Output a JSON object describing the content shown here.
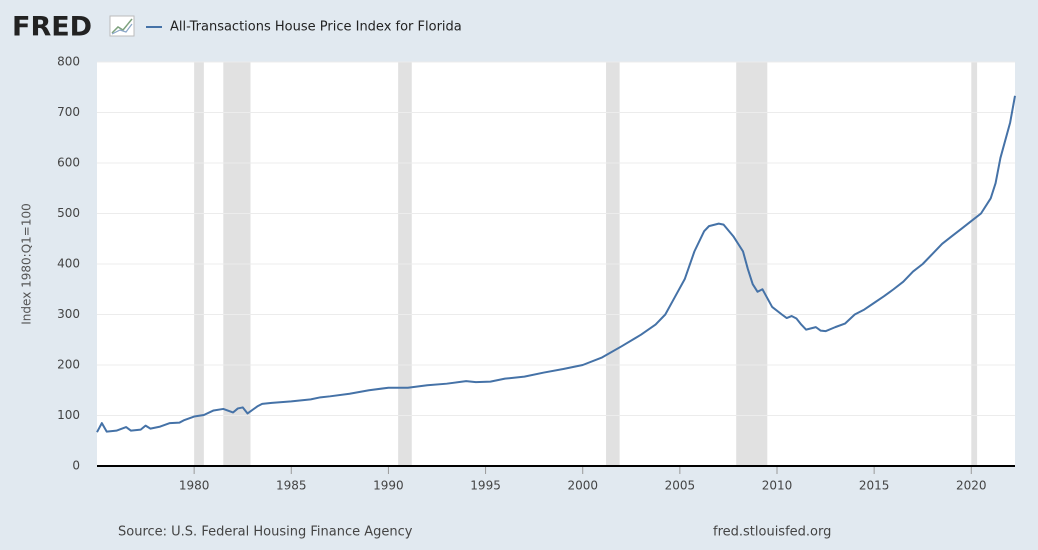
{
  "chart_data": {
    "type": "line",
    "logo": "FRED",
    "y_label": "Index 1980:Q1=100",
    "source": "Source: U.S. Federal Housing Finance Agency",
    "site": "fred.stlouisfed.org",
    "x": [
      1975.0,
      1975.25,
      1975.5,
      1976.0,
      1976.5,
      1976.75,
      1977.25,
      1977.5,
      1977.75,
      1978.25,
      1978.75,
      1979.25,
      1979.5,
      1980.0,
      1980.5,
      1981.0,
      1981.5,
      1982.0,
      1982.25,
      1982.5,
      1982.75,
      1983.25,
      1983.5,
      1984.0,
      1985.0,
      1986.0,
      1986.5,
      1987.0,
      1988.0,
      1989.0,
      1990.0,
      1991.0,
      1992.0,
      1993.0,
      1994.0,
      1994.5,
      1995.25,
      1996.0,
      1997.0,
      1998.0,
      1999.0,
      2000.0,
      2001.0,
      2002.0,
      2003.0,
      2003.75,
      2004.25,
      2004.75,
      2005.25,
      2005.75,
      2006.25,
      2006.5,
      2007.0,
      2007.25,
      2007.75,
      2008.25,
      2008.5,
      2008.75,
      2009.0,
      2009.25,
      2009.75,
      2010.25,
      2010.5,
      2010.75,
      2011.0,
      2011.25,
      2011.5,
      2012.0,
      2012.25,
      2012.5,
      2013.0,
      2013.5,
      2014.0,
      2014.5,
      2015.0,
      2015.5,
      2016.0,
      2016.5,
      2017.0,
      2017.5,
      2018.0,
      2018.5,
      2019.0,
      2019.5,
      2020.0,
      2020.5,
      2021.0,
      2021.25,
      2021.5,
      2022.0,
      2022.25
    ],
    "series": [
      {
        "name": "All-Transactions House Price Index for Florida",
        "color": "#4572a7",
        "values": [
          67,
          85,
          68,
          70,
          77,
          70,
          72,
          80,
          74,
          78,
          85,
          86,
          91,
          98,
          101,
          110,
          113,
          106,
          114,
          116,
          104,
          118,
          123,
          125,
          128,
          132,
          136,
          138,
          143,
          150,
          155,
          155,
          160,
          163,
          168,
          166,
          167,
          173,
          177,
          185,
          192,
          200,
          215,
          237,
          260,
          280,
          300,
          335,
          370,
          425,
          465,
          475,
          480,
          478,
          455,
          425,
          390,
          360,
          345,
          350,
          315,
          300,
          293,
          297,
          292,
          280,
          270,
          275,
          268,
          267,
          275,
          282,
          300,
          310,
          323,
          336,
          350,
          365,
          385,
          400,
          420,
          440,
          455,
          470,
          485,
          500,
          530,
          560,
          610,
          680,
          733
        ]
      }
    ],
    "recessions": [
      [
        1980.0,
        1980.5
      ],
      [
        1981.5,
        1982.9
      ],
      [
        1990.5,
        1991.2
      ],
      [
        2001.2,
        2001.9
      ],
      [
        2007.9,
        2009.5
      ],
      [
        2020.0,
        2020.3
      ]
    ],
    "xlim": [
      1975,
      2022.25
    ],
    "xticks": [
      1980,
      1985,
      1990,
      1995,
      2000,
      2005,
      2010,
      2015,
      2020
    ],
    "ylim": [
      0,
      800
    ],
    "yticks": [
      0,
      100,
      200,
      300,
      400,
      500,
      600,
      700,
      800
    ],
    "grid": true
  }
}
